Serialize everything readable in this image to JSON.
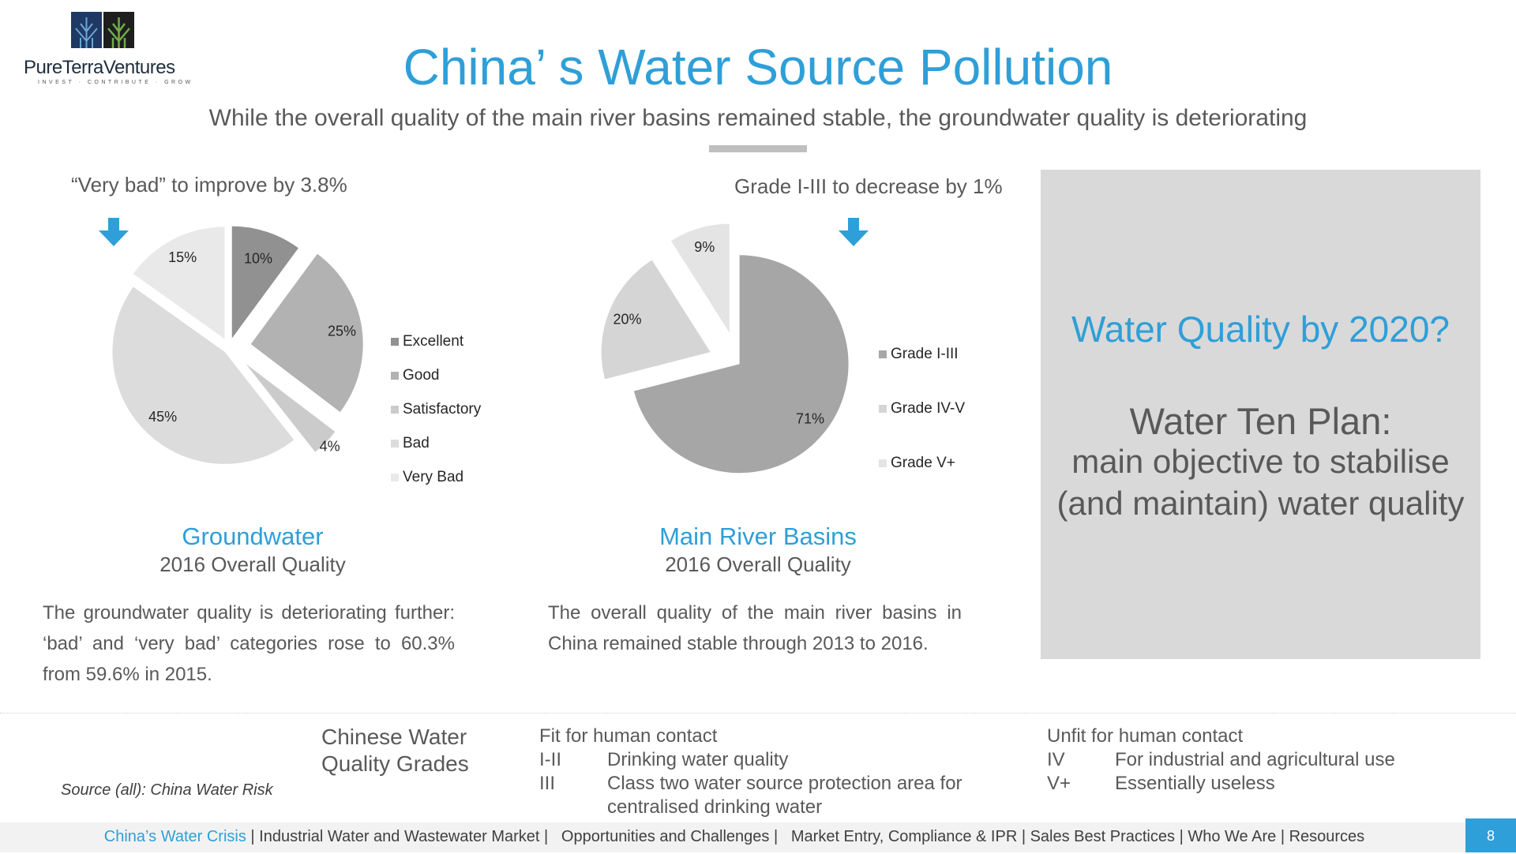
{
  "logo": {
    "name": "PureTerraVentures",
    "tagline": "INVEST · CONTRIBUTE · GROW",
    "colors": {
      "left": "#1f3864",
      "right": "#70ad47"
    }
  },
  "title": "China’ s Water Source Pollution",
  "subtitle": "While the overall quality of the main river basins remained stable, the groundwater quality is deteriorating",
  "accent_color": "#2e9fd8",
  "groundwater": {
    "note": "“Very bad” to improve by 3.8%",
    "name": "Groundwater",
    "sub": "2016 Overall Quality",
    "paragraph": "The groundwater quality is deteriorating further: ‘bad’ and ‘very bad’ categories rose to 60.3% from 59.6% in 2015."
  },
  "rivers": {
    "note": "Grade I-III to decrease by 1%",
    "name": "Main River Basins",
    "sub": "2016 Overall Quality",
    "paragraph": "The overall quality of the main river basins in China remained stable through 2013 to 2016."
  },
  "chart_data": [
    {
      "type": "pie",
      "exploded": true,
      "categories": [
        "Excellent",
        "Good",
        "Satisfactory",
        "Bad",
        "Very Bad"
      ],
      "values": [
        10,
        25,
        4,
        45,
        15
      ],
      "labels": [
        "10%",
        "25%",
        "4%",
        "45%",
        "15%"
      ],
      "colors": [
        "#919191",
        "#b2b2b2",
        "#cbcbcb",
        "#dcdcdc",
        "#e9e9e9"
      ],
      "legend_position": "right",
      "annotation_icon": "down-arrow-icon"
    },
    {
      "type": "pie",
      "exploded": true,
      "categories": [
        "Grade I-III",
        "Grade IV-V",
        "Grade V+"
      ],
      "values": [
        71,
        20,
        9
      ],
      "labels": [
        "71%",
        "20%",
        "9%"
      ],
      "colors": [
        "#a6a6a6",
        "#d5d5d5",
        "#e4e4e4"
      ],
      "legend_position": "right",
      "annotation_icon": "down-arrow-icon"
    }
  ],
  "side_panel": {
    "question": "Water Quality by 2020?",
    "plan": "Water Ten Plan:",
    "objective": "main objective to stabilise (and maintain) water quality"
  },
  "grades": {
    "title": "Chinese Water Quality Grades",
    "source": "Source (all): China Water Risk",
    "fit": {
      "heading": "Fit for human contact",
      "rows": [
        {
          "code": "I-II",
          "desc": "Drinking water quality"
        },
        {
          "code": "III",
          "desc": "Class two water source protection area for centralised drinking water"
        }
      ]
    },
    "unfit": {
      "heading": "Unfit for human contact",
      "rows": [
        {
          "code": "IV",
          "desc": "For industrial and agricultural use"
        },
        {
          "code": "V+",
          "desc": "Essentially useless"
        }
      ]
    }
  },
  "footer": {
    "items": [
      "China’s Water Crisis",
      "Industrial Water and Wastewater Market",
      "Opportunities and Challenges",
      "Market Entry, Compliance & IPR",
      "Sales Best Practices",
      "Who We Are",
      "Resources"
    ],
    "active_index": 0,
    "page": "8"
  }
}
